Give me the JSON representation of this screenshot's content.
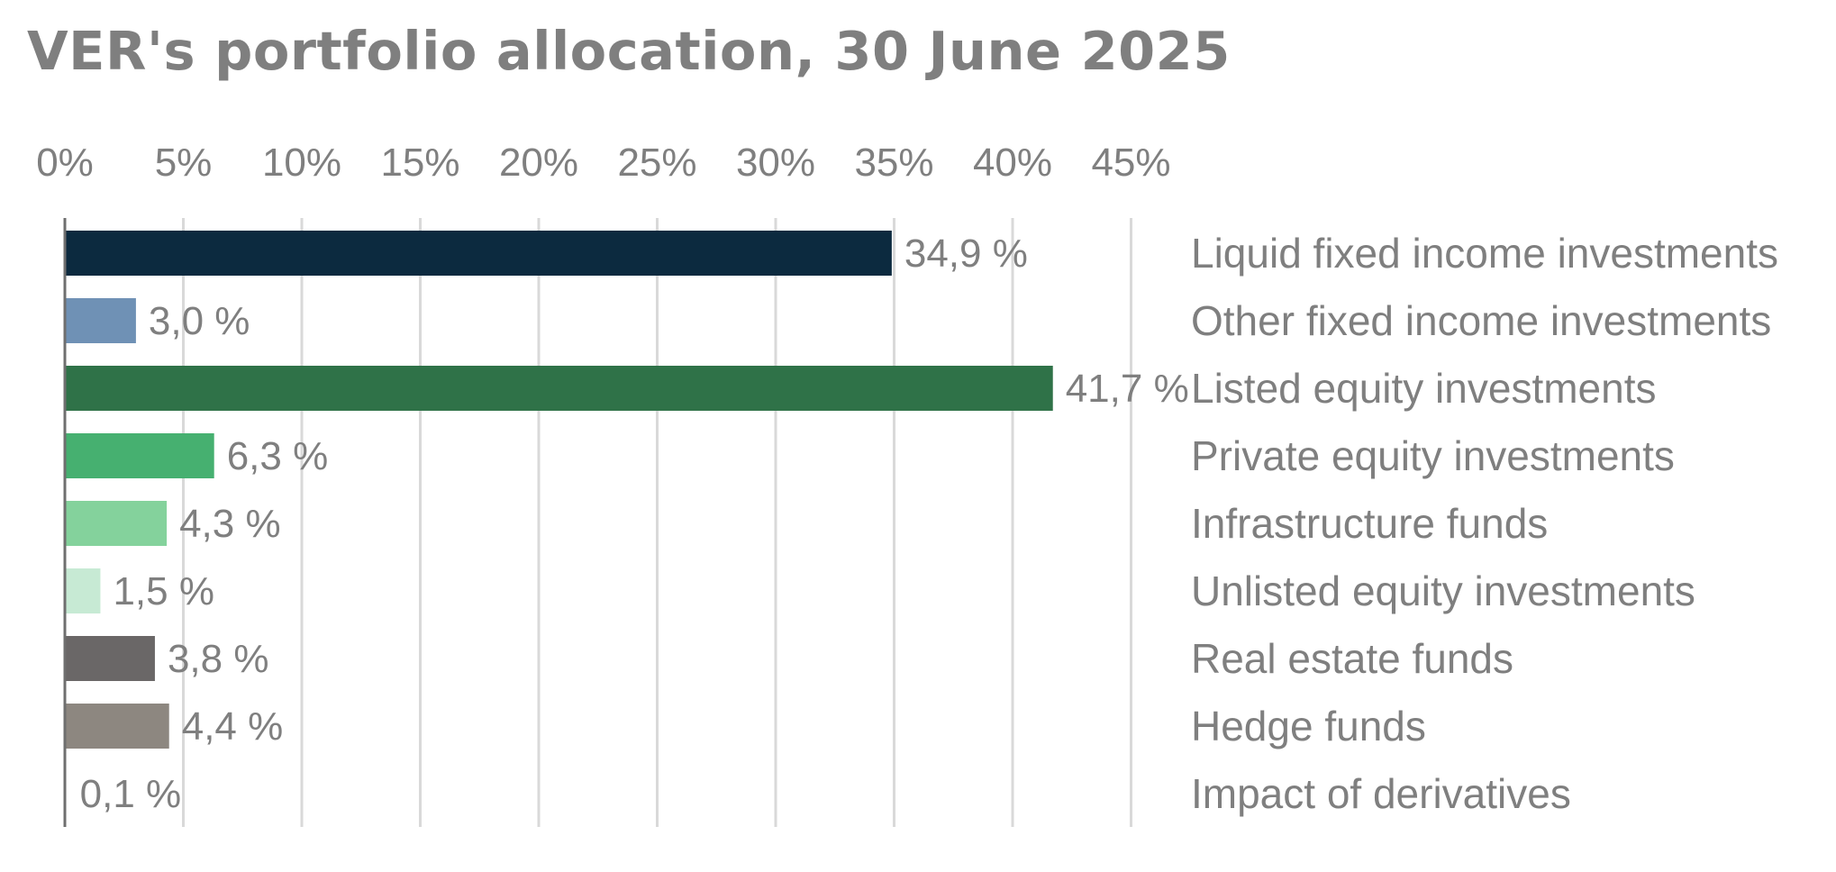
{
  "chart_data": {
    "type": "bar",
    "orientation": "horizontal",
    "title": "VER's portfolio allocation, 30 June 2025",
    "xlim": [
      0,
      45
    ],
    "x_ticks": [
      "0%",
      "5%",
      "10%",
      "15%",
      "20%",
      "25%",
      "30%",
      "35%",
      "40%",
      "45%"
    ],
    "x_tick_values": [
      0,
      5,
      10,
      15,
      20,
      25,
      30,
      35,
      40,
      45
    ],
    "x_axis_position": "top",
    "category_label_position": "right",
    "grid": true,
    "categories": [
      "Liquid fixed income investments",
      "Other fixed income investments",
      "Listed equity investments",
      "Private equity investments",
      "Infrastructure funds",
      "Unlisted equity investments",
      "Real estate funds",
      "Hedge funds",
      "Impact of derivatives"
    ],
    "values": [
      34.9,
      3.0,
      41.7,
      6.3,
      4.3,
      1.5,
      3.8,
      4.4,
      0.1
    ],
    "value_labels": [
      "34,9 %",
      "3,0 %",
      "41,7 %",
      "6,3 %",
      "4,3 %",
      "1,5 %",
      "3,8 %",
      "4,4 %",
      "0,1 %"
    ],
    "colors": [
      "#0c2a3f",
      "#6f91b5",
      "#2f7248",
      "#46b070",
      "#84d29c",
      "#c7ead4",
      "#6a6767",
      "#8d8780",
      "#ffffff"
    ]
  }
}
